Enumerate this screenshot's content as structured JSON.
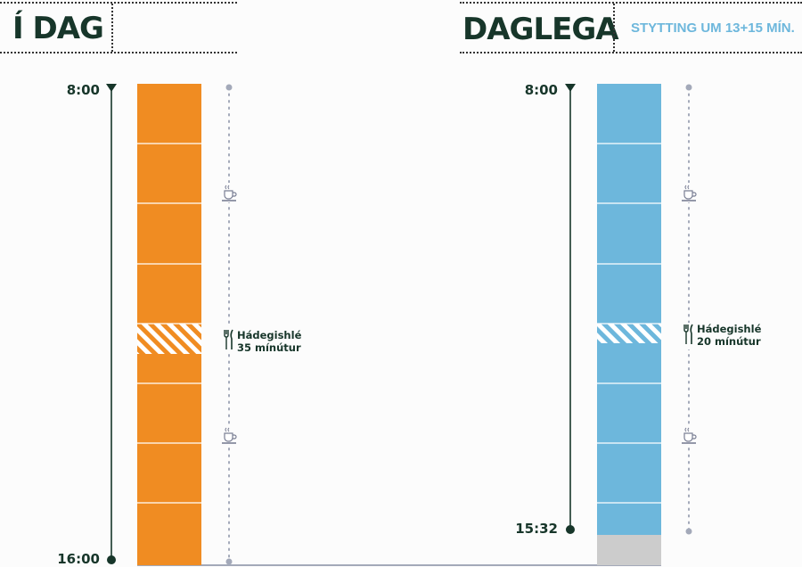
{
  "today": {
    "title": "Í DAG",
    "start_label": "8:00",
    "end_label": "16:00",
    "lunch_title": "Hádegishlé",
    "lunch_duration": "35 mínútur",
    "bar_color": "#f08c22",
    "break_icons": [
      "coffee-icon",
      "coffee-icon"
    ],
    "lunch_icon": "cutlery-icon"
  },
  "daily": {
    "title": "DAGLEGA",
    "subtitle": "STYTTING UM 13+15 MÍN.",
    "start_label": "8:00",
    "end_label": "15:32",
    "lunch_title": "Hádegishlé",
    "lunch_duration": "20 mínútur",
    "bar_color": "#6db7dc",
    "saved_color": "#cccccc",
    "break_icons": [
      "coffee-icon",
      "coffee-icon"
    ],
    "lunch_icon": "cutlery-icon"
  },
  "colors": {
    "text": "#17362a",
    "axis": "#17362a",
    "dotted_line": "#a3a9b9",
    "baseline": "#a3a9b9"
  }
}
